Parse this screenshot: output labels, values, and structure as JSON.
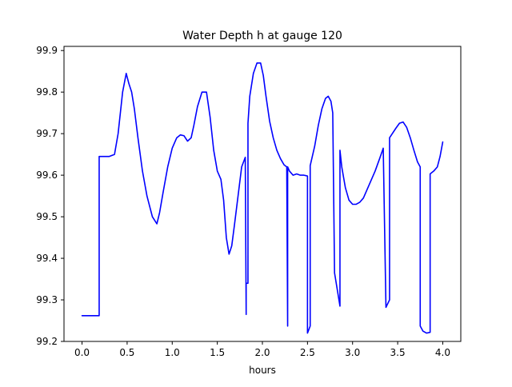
{
  "chart_data": {
    "type": "line",
    "title": "Water Depth h at gauge 120",
    "xlabel": "hours",
    "ylabel": "",
    "xlim": [
      -0.2,
      4.2
    ],
    "ylim": [
      99.2,
      99.91
    ],
    "xticks": [
      0.0,
      0.5,
      1.0,
      1.5,
      2.0,
      2.5,
      3.0,
      3.5,
      4.0
    ],
    "xtick_labels": [
      "0.0",
      "0.5",
      "1.0",
      "1.5",
      "2.0",
      "2.5",
      "3.0",
      "3.5",
      "4.0"
    ],
    "yticks": [
      99.2,
      99.3,
      99.4,
      99.5,
      99.6,
      99.7,
      99.8,
      99.9
    ],
    "ytick_labels": [
      "99.2",
      "99.3",
      "99.4",
      "99.5",
      "99.6",
      "99.7",
      "99.8",
      "99.9"
    ],
    "grid": false,
    "legend": "none",
    "series": [
      {
        "color": "#0000ff",
        "x": [
          0.0,
          0.19,
          0.19,
          0.25,
          0.3,
          0.36,
          0.4,
          0.45,
          0.49,
          0.52,
          0.55,
          0.58,
          0.62,
          0.67,
          0.72,
          0.78,
          0.83,
          0.86,
          0.9,
          0.95,
          1.0,
          1.05,
          1.09,
          1.13,
          1.17,
          1.21,
          1.24,
          1.28,
          1.33,
          1.38,
          1.42,
          1.46,
          1.5,
          1.54,
          1.57,
          1.6,
          1.63,
          1.66,
          1.69,
          1.73,
          1.77,
          1.81,
          1.82,
          1.82,
          1.84,
          1.84,
          1.86,
          1.9,
          1.94,
          1.98,
          2.01,
          2.04,
          2.08,
          2.12,
          2.16,
          2.2,
          2.24,
          2.27,
          2.28,
          2.28,
          2.3,
          2.34,
          2.38,
          2.42,
          2.46,
          2.5,
          2.5,
          2.53,
          2.53,
          2.58,
          2.62,
          2.66,
          2.7,
          2.73,
          2.76,
          2.78,
          2.8,
          2.8,
          2.86,
          2.86,
          2.88,
          2.92,
          2.96,
          3.0,
          3.04,
          3.08,
          3.12,
          3.16,
          3.2,
          3.25,
          3.3,
          3.34,
          3.37,
          3.37,
          3.41,
          3.41,
          3.44,
          3.48,
          3.52,
          3.56,
          3.6,
          3.64,
          3.68,
          3.72,
          3.75,
          3.75,
          3.78,
          3.82,
          3.86,
          3.86,
          3.9,
          3.94,
          3.97,
          4.0
        ],
        "y": [
          99.262,
          99.262,
          99.645,
          99.645,
          99.645,
          99.65,
          99.7,
          99.8,
          99.845,
          99.82,
          99.8,
          99.76,
          99.69,
          99.61,
          99.55,
          99.5,
          99.483,
          99.51,
          99.56,
          99.62,
          99.665,
          99.69,
          99.697,
          99.695,
          99.682,
          99.69,
          99.72,
          99.765,
          99.8,
          99.8,
          99.74,
          99.66,
          99.61,
          99.59,
          99.54,
          99.45,
          99.41,
          99.43,
          99.48,
          99.55,
          99.62,
          99.643,
          99.265,
          99.34,
          99.34,
          99.725,
          99.79,
          99.845,
          99.87,
          99.87,
          99.84,
          99.79,
          99.73,
          99.69,
          99.66,
          99.64,
          99.625,
          99.62,
          99.237,
          99.62,
          99.61,
          99.6,
          99.603,
          99.6,
          99.6,
          99.598,
          99.22,
          99.237,
          99.623,
          99.67,
          99.72,
          99.76,
          99.785,
          99.79,
          99.778,
          99.75,
          99.365,
          99.365,
          99.285,
          99.66,
          99.62,
          99.57,
          99.54,
          99.53,
          99.53,
          99.535,
          99.545,
          99.565,
          99.585,
          99.61,
          99.64,
          99.665,
          99.282,
          99.282,
          99.3,
          99.69,
          99.7,
          99.713,
          99.725,
          99.728,
          99.715,
          99.69,
          99.66,
          99.632,
          99.62,
          99.237,
          99.225,
          99.22,
          99.222,
          99.603,
          99.61,
          99.62,
          99.645,
          99.68
        ]
      }
    ]
  }
}
